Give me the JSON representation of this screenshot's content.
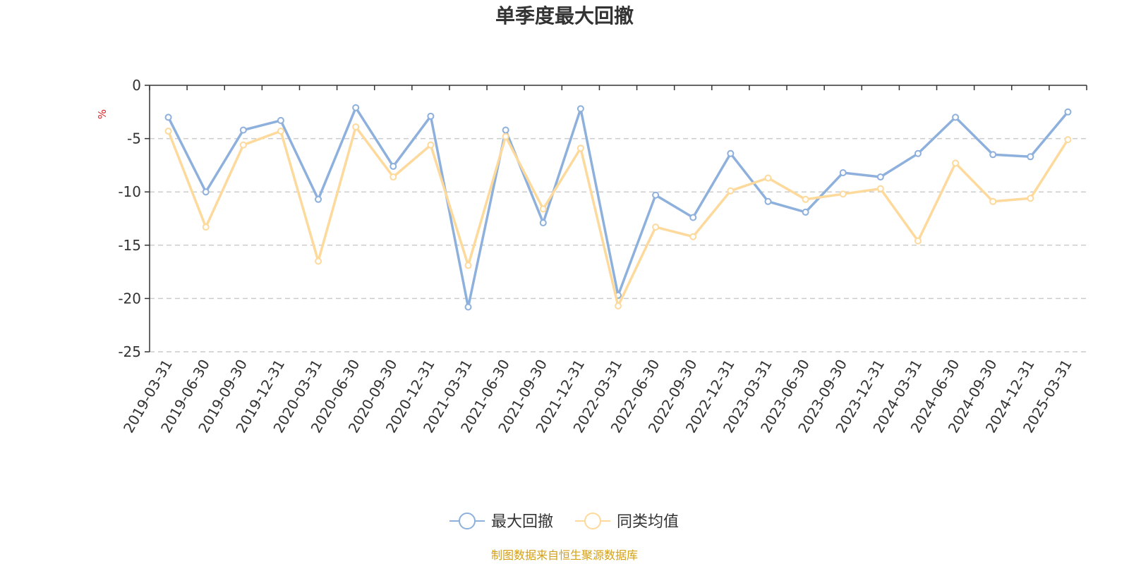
{
  "chart_data": {
    "type": "line",
    "title": "单季度最大回撤",
    "ylabel": "%",
    "ylim": [
      -25,
      0
    ],
    "yticks": [
      0,
      -5,
      -10,
      -15,
      -20,
      -25
    ],
    "grid": true,
    "legend_position": "bottom",
    "categories": [
      "2019-03-31",
      "2019-06-30",
      "2019-09-30",
      "2019-12-31",
      "2020-03-31",
      "2020-06-30",
      "2020-09-30",
      "2020-12-31",
      "2021-03-31",
      "2021-06-30",
      "2021-09-30",
      "2021-12-31",
      "2022-03-31",
      "2022-06-30",
      "2022-09-30",
      "2022-12-31",
      "2023-03-31",
      "2023-06-30",
      "2023-09-30",
      "2023-12-31",
      "2024-03-31",
      "2024-06-30",
      "2024-09-30",
      "2024-12-31",
      "2025-03-31"
    ],
    "series": [
      {
        "name": "最大回撤",
        "color": "#8eb0dc",
        "values": [
          -3.0,
          -10.0,
          -4.2,
          -3.3,
          -10.7,
          -2.1,
          -7.6,
          -2.9,
          -20.8,
          -4.2,
          -12.9,
          -2.2,
          -19.7,
          -10.3,
          -12.4,
          -6.4,
          -10.9,
          -11.9,
          -8.2,
          -8.6,
          -6.4,
          -3.0,
          -6.5,
          -6.7,
          -2.5
        ]
      },
      {
        "name": "同类均值",
        "color": "#fdd99b",
        "values": [
          -4.3,
          -13.3,
          -5.6,
          -4.3,
          -16.5,
          -3.9,
          -8.6,
          -5.6,
          -16.9,
          -4.8,
          -11.6,
          -5.9,
          -20.7,
          -13.3,
          -14.2,
          -9.9,
          -8.7,
          -10.7,
          -10.2,
          -9.7,
          -14.6,
          -7.3,
          -10.9,
          -10.6,
          -5.1
        ]
      }
    ],
    "source": "制图数据来自恒生聚源数据库",
    "source_color": "#d4a017",
    "unit_color": "#e02020"
  }
}
